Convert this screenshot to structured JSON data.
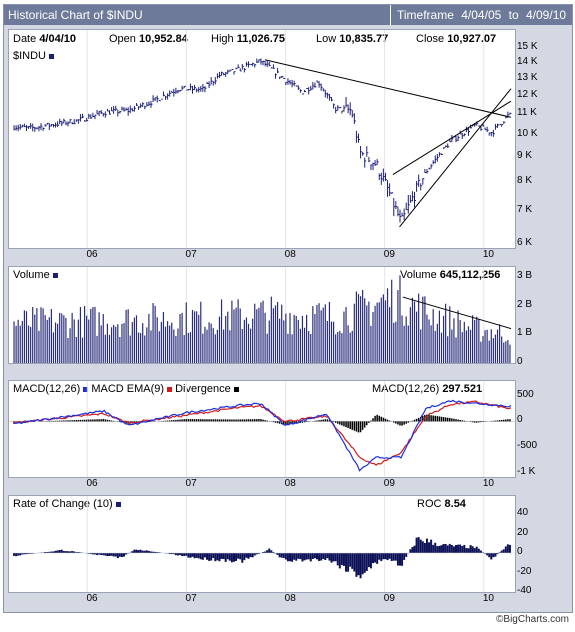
{
  "header": {
    "title": "Historical Chart of $INDU",
    "timeframe_label": "Timeframe",
    "timeframe_start": "4/04/05",
    "timeframe_to": "to",
    "timeframe_end": "4/09/10"
  },
  "price_info": {
    "date_label": "Date",
    "date": "4/04/10",
    "open_label": "Open",
    "open": "10,952.84",
    "high_label": "High",
    "high": "11,026.75",
    "low_label": "Low",
    "low": "10,835.77",
    "close_label": "Close",
    "close": "10,927.07",
    "symbol": "$INDU"
  },
  "volume_info": {
    "label": "Volume",
    "value": "645,112,256"
  },
  "macd_info": {
    "macd_label": "MACD(12,26)",
    "ema_label": "MACD EMA(9)",
    "div_label": "Divergence",
    "value_label": "MACD(12,26)",
    "value": "297.521"
  },
  "roc_info": {
    "label": "Rate of Change (10)",
    "value_label": "ROC",
    "value": "8.54"
  },
  "footer": "©BigCharts.com",
  "colors": {
    "price": "#1c1f78",
    "macd": "#1a2ee0",
    "ema": "#d21b1b",
    "divergence": "#000000",
    "volume": "#2a2d7a",
    "roc": "#0c1157"
  },
  "chart_data": [
    {
      "type": "line",
      "title": "Historical Chart of $INDU",
      "series": [
        {
          "name": "$INDU",
          "x": [
            "2005-04",
            "2005-06",
            "2005-09",
            "2005-12",
            "2006-03",
            "2006-06",
            "2006-09",
            "2006-12",
            "2007-03",
            "2007-05",
            "2007-07",
            "2007-10",
            "2007-12",
            "2008-03",
            "2008-05",
            "2008-07",
            "2008-09",
            "2008-10",
            "2008-12",
            "2009-03",
            "2009-06",
            "2009-09",
            "2009-12",
            "2010-02",
            "2010-04"
          ],
          "values": [
            10400,
            10300,
            10500,
            10700,
            11100,
            11200,
            11700,
            12400,
            12350,
            13200,
            13500,
            14100,
            13300,
            12200,
            12800,
            11300,
            11200,
            9200,
            8700,
            6600,
            8400,
            9700,
            10450,
            10100,
            10950
          ]
        }
      ],
      "x_ticks": [
        "06",
        "07",
        "08",
        "09",
        "10"
      ],
      "y_ticks": [
        "6 K",
        "7 K",
        "8 K",
        "9 K",
        "10 K",
        "11 K",
        "12 K",
        "13 K",
        "14 K",
        "15 K"
      ],
      "ylim": [
        6000,
        15000
      ],
      "y_scale": "log"
    },
    {
      "type": "bar",
      "title": "Volume",
      "y_ticks": [
        "0",
        "1 B",
        "2 B",
        "3 B"
      ],
      "ylim": [
        0,
        3000000000
      ]
    },
    {
      "type": "line",
      "title": "MACD(12,26)",
      "series": [
        {
          "name": "MACD(12,26)",
          "x": [
            "2005-04",
            "2006-03",
            "2006-06",
            "2007-01",
            "2007-07",
            "2007-10",
            "2008-01",
            "2008-06",
            "2008-10",
            "2008-12",
            "2009-03",
            "2009-06",
            "2009-09",
            "2009-12",
            "2010-04"
          ],
          "values": [
            -50,
            200,
            -80,
            170,
            300,
            350,
            -80,
            150,
            -950,
            -700,
            -700,
            250,
            400,
            350,
            297
          ]
        },
        {
          "name": "MACD EMA(9)",
          "x": [
            "2005-04",
            "2006-03",
            "2006-06",
            "2007-01",
            "2007-07",
            "2007-10",
            "2008-01",
            "2008-06",
            "2008-10",
            "2008-12",
            "2009-03",
            "2009-06",
            "2009-09",
            "2009-12",
            "2010-04"
          ],
          "values": [
            -30,
            150,
            -30,
            120,
            260,
            300,
            0,
            100,
            -700,
            -850,
            -600,
            100,
            330,
            380,
            250
          ]
        }
      ],
      "y_ticks": [
        "-1 K",
        "-500",
        "0",
        "500"
      ],
      "ylim": [
        -1000,
        550
      ]
    },
    {
      "type": "area",
      "title": "Rate of Change (10)",
      "series": [
        {
          "name": "ROC",
          "x": [
            "2005-04",
            "2005-10",
            "2006-05",
            "2006-07",
            "2007-03",
            "2007-08",
            "2007-11",
            "2008-01",
            "2008-06",
            "2008-10",
            "2009-01",
            "2009-03",
            "2009-05",
            "2009-08",
            "2009-12",
            "2010-02",
            "2010-04"
          ],
          "values": [
            -3,
            3,
            -5,
            4,
            -6,
            -8,
            4,
            -8,
            -6,
            -22,
            -5,
            -12,
            15,
            8,
            6,
            -6,
            8.54
          ]
        }
      ],
      "y_ticks": [
        "-40",
        "-20",
        "0",
        "20",
        "40"
      ],
      "ylim": [
        -40,
        40
      ]
    }
  ]
}
